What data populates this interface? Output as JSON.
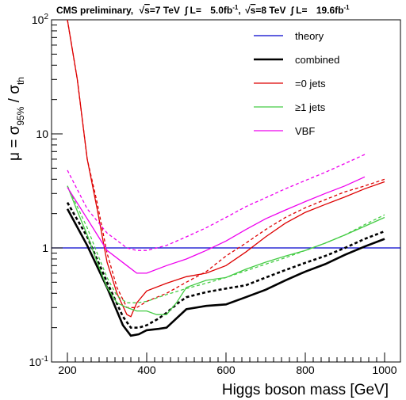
{
  "header": {
    "prefix": "CMS preliminary,",
    "sqrt_s": "s",
    "energy_7": "=7 TeV",
    "lumi_7_label": "L=",
    "lumi_7_value": "5.0fb",
    "sep": ",",
    "energy_8": "=8 TeV",
    "lumi_8_label": "L=",
    "lumi_8_value": "19.6fb",
    "inv_exp": "-1"
  },
  "colors": {
    "theory": "#0000cc",
    "combined": "#000000",
    "zero_jets": "#dd0000",
    "one_jets": "#44cc44",
    "vbf": "#ee00ee"
  },
  "chart_data": {
    "type": "line",
    "xlabel": "Higgs boson mass [GeV]",
    "ylabel": {
      "mu": "μ = σ",
      "sub1": "95%",
      "slash": " / σ",
      "sub2": "th"
    },
    "xlim": [
      160,
      1040
    ],
    "ylim": [
      0.1,
      100
    ],
    "yscale": "log",
    "x_ticks": [
      200,
      400,
      600,
      800,
      1000
    ],
    "y_ticks": [
      {
        "value": 0.1,
        "base": "10",
        "exp": "-1"
      },
      {
        "value": 1,
        "base": "1",
        "exp": ""
      },
      {
        "value": 10,
        "base": "10",
        "exp": ""
      },
      {
        "value": 100,
        "base": "10",
        "exp": "2"
      }
    ],
    "legend_position": "top-right",
    "legend": [
      {
        "key": "theory",
        "label": "theory"
      },
      {
        "key": "combined",
        "label": "combined"
      },
      {
        "key": "zero_jets",
        "label": "=0 jets"
      },
      {
        "key": "one_jets",
        "label": "≥1 jets"
      },
      {
        "key": "vbf",
        "label": "VBF"
      }
    ],
    "series": [
      {
        "key": "theory",
        "style": "solid",
        "x": [
          160,
          1040
        ],
        "y": [
          1,
          1
        ]
      },
      {
        "key": "combined",
        "style": "solid",
        "x": [
          200,
          250,
          300,
          340,
          360,
          380,
          400,
          430,
          450,
          480,
          500,
          550,
          600,
          650,
          700,
          750,
          800,
          850,
          900,
          950,
          1000
        ],
        "y": [
          2.2,
          1.05,
          0.45,
          0.21,
          0.17,
          0.175,
          0.19,
          0.195,
          0.2,
          0.25,
          0.29,
          0.31,
          0.32,
          0.37,
          0.43,
          0.52,
          0.62,
          0.72,
          0.87,
          1.03,
          1.2
        ]
      },
      {
        "key": "combined",
        "style": "dashed",
        "x": [
          200,
          250,
          300,
          340,
          360,
          380,
          400,
          430,
          450,
          480,
          500,
          550,
          600,
          650,
          700,
          750,
          800,
          850,
          900,
          950,
          1000
        ],
        "y": [
          2.5,
          1.25,
          0.5,
          0.25,
          0.2,
          0.2,
          0.21,
          0.24,
          0.27,
          0.33,
          0.37,
          0.41,
          0.44,
          0.47,
          0.55,
          0.64,
          0.74,
          0.85,
          1.0,
          1.2,
          1.4
        ]
      },
      {
        "key": "zero_jets",
        "style": "solid",
        "x": [
          200,
          225,
          250,
          275,
          300,
          325,
          350,
          360,
          375,
          400,
          450,
          500,
          550,
          600,
          650,
          700,
          750,
          800,
          850,
          900,
          950,
          1000
        ],
        "y": [
          100,
          30,
          6,
          2.2,
          0.75,
          0.4,
          0.26,
          0.25,
          0.33,
          0.42,
          0.49,
          0.56,
          0.6,
          0.7,
          0.92,
          1.25,
          1.65,
          2.05,
          2.4,
          2.8,
          3.3,
          3.8
        ]
      },
      {
        "key": "zero_jets",
        "style": "dashed",
        "x": [
          200,
          225,
          250,
          275,
          300,
          325,
          350,
          375,
          400,
          450,
          500,
          550,
          600,
          650,
          700,
          750,
          800,
          850,
          900,
          950,
          1000
        ],
        "y": [
          100,
          30,
          6,
          2.5,
          0.9,
          0.45,
          0.3,
          0.3,
          0.34,
          0.4,
          0.5,
          0.62,
          0.85,
          1.1,
          1.45,
          1.85,
          2.25,
          2.65,
          3.1,
          3.5,
          4.0
        ]
      },
      {
        "key": "one_jets",
        "style": "solid",
        "x": [
          200,
          225,
          250,
          275,
          300,
          325,
          350,
          375,
          400,
          425,
          450,
          475,
          500,
          550,
          600,
          650,
          700,
          750,
          800,
          850,
          900,
          950,
          1000
        ],
        "y": [
          3.5,
          2.1,
          1.3,
          0.75,
          0.45,
          0.33,
          0.3,
          0.28,
          0.28,
          0.26,
          0.26,
          0.33,
          0.45,
          0.52,
          0.55,
          0.65,
          0.75,
          0.85,
          0.95,
          1.1,
          1.3,
          1.55,
          1.85
        ]
      },
      {
        "key": "one_jets",
        "style": "dashed",
        "x": [
          200,
          225,
          250,
          275,
          300,
          325,
          350,
          375,
          400,
          450,
          500,
          550,
          600,
          650,
          700,
          750,
          800,
          850,
          900,
          950,
          1000
        ],
        "y": [
          3.5,
          2.3,
          1.5,
          0.9,
          0.55,
          0.38,
          0.33,
          0.33,
          0.34,
          0.39,
          0.44,
          0.49,
          0.55,
          0.63,
          0.72,
          0.82,
          0.95,
          1.1,
          1.3,
          1.6,
          1.95
        ]
      },
      {
        "key": "vbf",
        "style": "solid",
        "x": [
          200,
          250,
          300,
          350,
          375,
          400,
          450,
          500,
          550,
          600,
          650,
          700,
          750,
          800,
          850,
          900,
          950
        ],
        "y": [
          3.4,
          1.8,
          0.95,
          0.7,
          0.6,
          0.6,
          0.7,
          0.8,
          0.95,
          1.15,
          1.45,
          1.8,
          2.15,
          2.55,
          3.0,
          3.5,
          4.2
        ]
      },
      {
        "key": "vbf",
        "style": "dashed",
        "x": [
          200,
          250,
          300,
          350,
          375,
          400,
          450,
          500,
          550,
          600,
          650,
          700,
          750,
          800,
          850,
          900,
          950
        ],
        "y": [
          4.8,
          2.2,
          1.35,
          1.0,
          0.95,
          0.95,
          1.05,
          1.25,
          1.5,
          1.85,
          2.3,
          2.75,
          3.3,
          3.9,
          4.6,
          5.5,
          6.6
        ]
      }
    ]
  }
}
